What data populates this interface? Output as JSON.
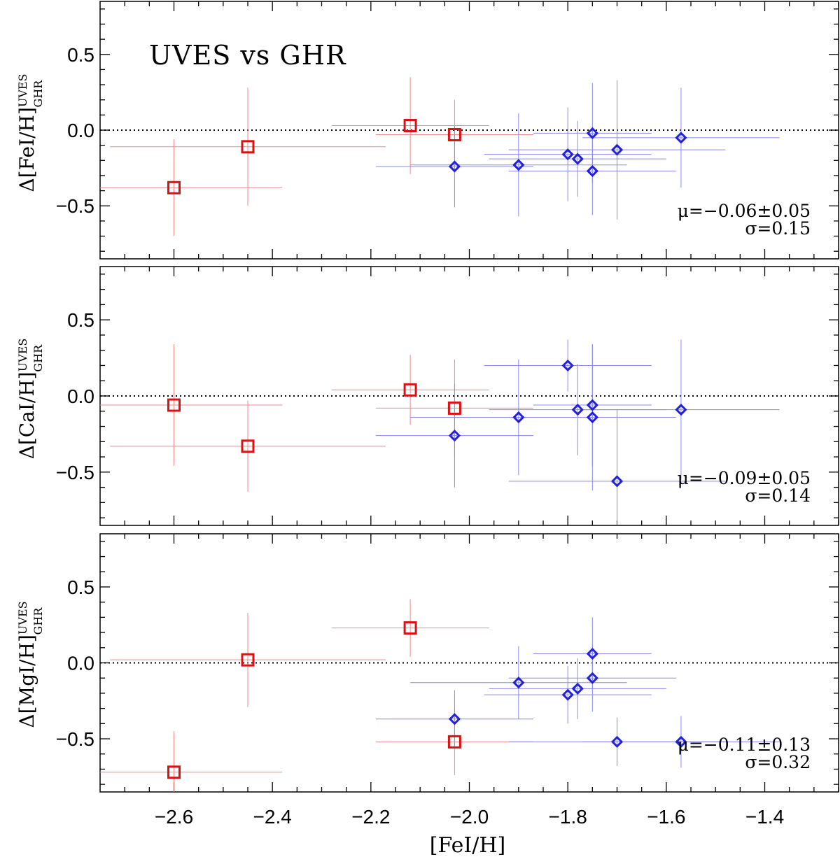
{
  "figure": {
    "annotation": "UVES vs GHR",
    "xlabel": "[FeI/H]",
    "colors": {
      "red": "#dd1111",
      "blue": "#2222dd",
      "errbar_red": "#f08888",
      "errbar_blue": "#8888ee"
    },
    "icons": {
      "red_marker": "square-marker-icon",
      "blue_marker": "diamond-marker-icon"
    }
  },
  "chart_data": [
    {
      "type": "scatter",
      "ylabel_main": "Δ[FeI/H]",
      "ylabel_sup": "UVES",
      "ylabel_sub": "GHR",
      "xlim": [
        -2.75,
        -1.25
      ],
      "ylim": [
        -0.85,
        0.85
      ],
      "x_ticks": [
        -2.6,
        -2.4,
        -2.2,
        -2.0,
        -1.8,
        -1.6,
        -1.4
      ],
      "y_ticks": [
        -0.5,
        0.0,
        0.5
      ],
      "y_tick_labels": [
        "−0.5",
        "0.0",
        "0.5"
      ],
      "reference_line": 0.0,
      "stats_mu": "μ=−0.06±0.05",
      "stats_sigma": "σ=0.15",
      "series": [
        {
          "marker": "square",
          "color": "red",
          "x": [
            -2.6,
            -2.45,
            -2.12,
            -2.03
          ],
          "y": [
            -0.38,
            -0.11,
            0.03,
            -0.03
          ],
          "xerr": [
            0.22,
            0.28,
            0.16,
            0.16
          ],
          "yerr": [
            0.32,
            0.39,
            0.32,
            0.23
          ]
        },
        {
          "marker": "diamond",
          "color": "blue",
          "x": [
            -2.03,
            -1.9,
            -1.8,
            -1.78,
            -1.75,
            -1.75,
            -1.7,
            -1.57
          ],
          "y": [
            -0.24,
            -0.23,
            -0.16,
            -0.19,
            -0.02,
            -0.27,
            -0.13,
            -0.05
          ],
          "xerr": [
            0.16,
            0.22,
            0.17,
            0.18,
            0.12,
            0.17,
            0.22,
            0.2
          ],
          "yerr": [
            0.27,
            0.34,
            0.31,
            0.25,
            0.33,
            0.29,
            0.46,
            0.33
          ]
        }
      ]
    },
    {
      "type": "scatter",
      "ylabel_main": "Δ[CaI/H]",
      "ylabel_sup": "UVES",
      "ylabel_sub": "GHR",
      "xlim": [
        -2.75,
        -1.25
      ],
      "ylim": [
        -0.85,
        0.85
      ],
      "x_ticks": [
        -2.6,
        -2.4,
        -2.2,
        -2.0,
        -1.8,
        -1.6,
        -1.4
      ],
      "y_ticks": [
        -0.5,
        0.0,
        0.5
      ],
      "y_tick_labels": [
        "−0.5",
        "0.0",
        "0.5"
      ],
      "reference_line": 0.0,
      "stats_mu": "μ=−0.09±0.05",
      "stats_sigma": "σ=0.14",
      "series": [
        {
          "marker": "square",
          "color": "red",
          "x": [
            -2.6,
            -2.45,
            -2.12,
            -2.03
          ],
          "y": [
            -0.06,
            -0.33,
            0.04,
            -0.08
          ],
          "xerr": [
            0.22,
            0.28,
            0.16,
            0.16
          ],
          "yerr": [
            0.4,
            0.3,
            0.23,
            0.32
          ]
        },
        {
          "marker": "diamond",
          "color": "blue",
          "x": [
            -2.03,
            -1.9,
            -1.8,
            -1.78,
            -1.75,
            -1.75,
            -1.7,
            -1.57
          ],
          "y": [
            -0.26,
            -0.14,
            0.2,
            -0.09,
            -0.06,
            -0.14,
            -0.56,
            -0.09
          ],
          "xerr": [
            0.16,
            0.22,
            0.17,
            0.18,
            0.12,
            0.17,
            0.22,
            0.2
          ],
          "yerr": [
            0.34,
            0.38,
            0.17,
            0.3,
            0.4,
            0.48,
            0.47,
            0.46
          ]
        }
      ]
    },
    {
      "type": "scatter",
      "ylabel_main": "Δ[MgI/H]",
      "ylabel_sup": "UVES",
      "ylabel_sub": "GHR",
      "xlim": [
        -2.75,
        -1.25
      ],
      "ylim": [
        -0.85,
        0.85
      ],
      "x_ticks": [
        -2.6,
        -2.4,
        -2.2,
        -2.0,
        -1.8,
        -1.6,
        -1.4
      ],
      "x_tick_labels": [
        "−2.6",
        "−2.4",
        "−2.2",
        "−2.0",
        "−1.8",
        "−1.6",
        "−1.4"
      ],
      "y_ticks": [
        -0.5,
        0.0,
        0.5
      ],
      "y_tick_labels": [
        "−0.5",
        "0.0",
        "0.5"
      ],
      "reference_line": 0.0,
      "stats_mu": "μ=−0.11±0.13",
      "stats_sigma": "σ=0.32",
      "series": [
        {
          "marker": "square",
          "color": "red",
          "x": [
            -2.6,
            -2.45,
            -2.12,
            -2.03
          ],
          "y": [
            -0.72,
            0.02,
            0.23,
            -0.52
          ],
          "xerr": [
            0.22,
            0.28,
            0.16,
            0.16
          ],
          "yerr": [
            0.27,
            0.31,
            0.19,
            0.22
          ]
        },
        {
          "marker": "diamond",
          "color": "blue",
          "x": [
            -2.03,
            -1.9,
            -1.8,
            -1.78,
            -1.75,
            -1.75,
            -1.7,
            -1.57
          ],
          "y": [
            -0.37,
            -0.13,
            -0.21,
            -0.17,
            0.06,
            -0.1,
            -0.52,
            -0.52
          ],
          "xerr": [
            0.16,
            0.22,
            0.17,
            0.18,
            0.12,
            0.17,
            0.22,
            0.2
          ],
          "yerr": [
            0.19,
            0.24,
            0.19,
            0.2,
            0.24,
            0.22,
            0.16,
            0.17
          ]
        }
      ]
    }
  ]
}
